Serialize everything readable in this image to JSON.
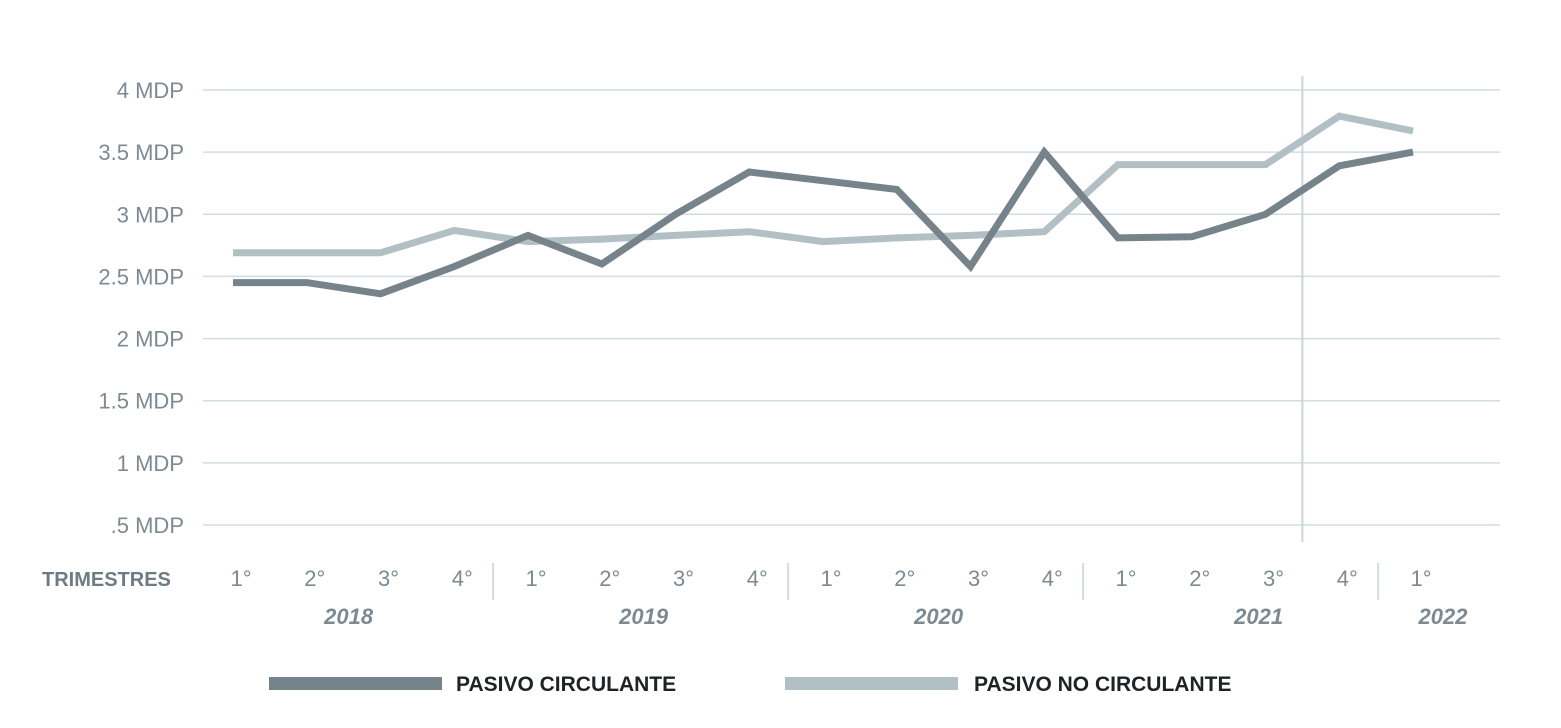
{
  "chart_data": {
    "type": "line",
    "y_tick_labels": [
      "4 MDP",
      "3.5 MDP",
      "3 MDP",
      "2.5 MDP",
      "2 MDP",
      "1.5 MDP",
      "1 MDP",
      ".5 MDP"
    ],
    "y_tick_values": [
      4,
      3.5,
      3,
      2.5,
      2,
      1.5,
      1,
      0.5
    ],
    "ylim": [
      0.5,
      4
    ],
    "x_axis_title": "TRIMESTRES",
    "categories": [
      "1°",
      "2°",
      "3°",
      "4°",
      "1°",
      "2°",
      "3°",
      "4°",
      "1°",
      "2°",
      "3°",
      "4°",
      "1°",
      "2°",
      "3°",
      "4°",
      "1°"
    ],
    "years": [
      "2018",
      "2019",
      "2020",
      "2021",
      "2022"
    ],
    "series": [
      {
        "name": "PASIVO CIRCULANTE",
        "color": "#76838b",
        "values": [
          2.45,
          2.45,
          2.36,
          2.58,
          2.83,
          2.6,
          3.0,
          3.34,
          3.27,
          3.2,
          2.58,
          3.5,
          2.81,
          2.82,
          3.0,
          3.39,
          3.5
        ]
      },
      {
        "name": "PASIVO NO CIRCULANTE",
        "color": "#b2c0c6",
        "values": [
          2.69,
          2.69,
          2.69,
          2.87,
          2.78,
          2.8,
          2.83,
          2.86,
          2.78,
          2.81,
          2.83,
          2.86,
          3.4,
          3.4,
          3.4,
          3.79,
          3.67
        ]
      }
    ],
    "grid": true,
    "legend_position": "bottom"
  }
}
